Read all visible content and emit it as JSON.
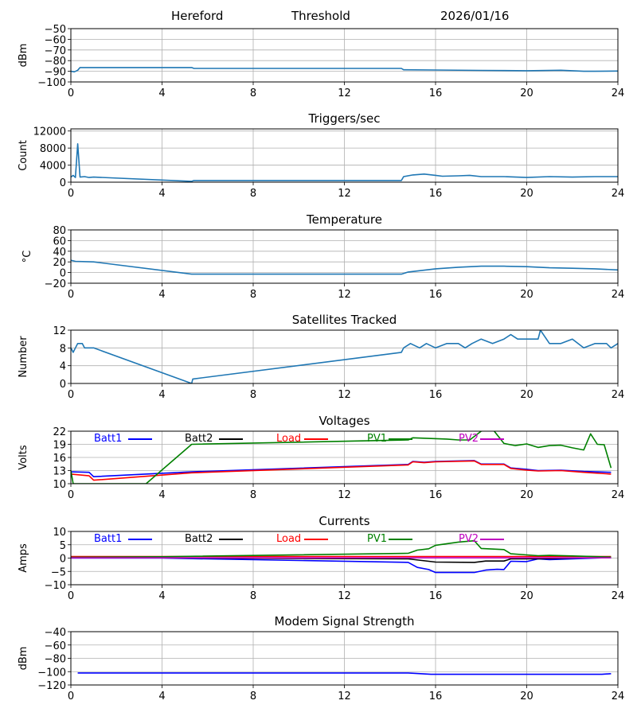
{
  "header": {
    "station": "Hereford",
    "mode": "Threshold",
    "date": "2026/01/16"
  },
  "chart_data": [
    {
      "type": "line",
      "title": "",
      "xlabel": "",
      "ylabel": "dBm",
      "xlim": [
        0,
        24
      ],
      "ylim": [
        -100,
        -50
      ],
      "xticks": [
        0,
        4,
        8,
        12,
        16,
        20,
        24
      ],
      "yticks": [
        -100,
        -90,
        -80,
        -70,
        -60,
        -50
      ],
      "grid": true,
      "series": [
        {
          "name": "threshold",
          "color": "#1f77b4",
          "x": [
            0,
            0.15,
            0.3,
            0.4,
            5.3,
            5.4,
            14.5,
            14.6,
            16,
            18,
            20,
            21.5,
            22.5,
            23,
            24
          ],
          "y": [
            -90,
            -90.5,
            -89,
            -86.5,
            -86.5,
            -87.3,
            -87.3,
            -88.6,
            -88.8,
            -89.2,
            -89.5,
            -89,
            -90,
            -90,
            -89.8
          ]
        }
      ]
    },
    {
      "type": "line",
      "title": "Triggers/sec",
      "xlabel": "",
      "ylabel": "Count",
      "xlim": [
        0,
        24
      ],
      "ylim": [
        0,
        12500
      ],
      "xticks": [
        0,
        4,
        8,
        12,
        16,
        20,
        24
      ],
      "yticks": [
        0,
        4000,
        8000,
        12000
      ],
      "grid": true,
      "series": [
        {
          "name": "triggers",
          "color": "#1f77b4",
          "x": [
            0,
            0.1,
            0.2,
            0.3,
            0.4,
            0.6,
            0.8,
            1.0,
            5.3,
            5.4,
            14.5,
            14.6,
            15,
            15.5,
            16,
            16.3,
            17,
            17.5,
            18,
            19,
            20,
            21,
            22,
            23,
            24
          ],
          "y": [
            1200,
            1600,
            1100,
            9000,
            1200,
            1300,
            1100,
            1200,
            200,
            400,
            400,
            1300,
            1700,
            1900,
            1600,
            1400,
            1500,
            1600,
            1300,
            1300,
            1100,
            1300,
            1200,
            1300,
            1300
          ]
        }
      ]
    },
    {
      "type": "line",
      "title": "Temperature",
      "xlabel": "",
      "ylabel": "°C",
      "xlim": [
        0,
        24
      ],
      "ylim": [
        -20,
        80
      ],
      "xticks": [
        0,
        4,
        8,
        12,
        16,
        20,
        24
      ],
      "yticks": [
        -20,
        0,
        20,
        40,
        60,
        80
      ],
      "grid": true,
      "series": [
        {
          "name": "temperature",
          "color": "#1f77b4",
          "x": [
            0,
            0.2,
            1.0,
            5.3,
            14.5,
            14.8,
            16,
            17,
            18,
            19,
            20,
            21,
            22,
            23,
            24
          ],
          "y": [
            23,
            21,
            20,
            -3,
            -3,
            1,
            7,
            10,
            12,
            12,
            11,
            9,
            8,
            7,
            5
          ]
        }
      ]
    },
    {
      "type": "line",
      "title": "Satellites Tracked",
      "xlabel": "",
      "ylabel": "Number",
      "xlim": [
        0,
        24
      ],
      "ylim": [
        0,
        12
      ],
      "xticks": [
        0,
        4,
        8,
        12,
        16,
        20,
        24
      ],
      "yticks": [
        0,
        4,
        8,
        12
      ],
      "grid": true,
      "series": [
        {
          "name": "satellites",
          "color": "#1f77b4",
          "x": [
            0,
            0.1,
            0.2,
            0.3,
            0.5,
            0.6,
            1.0,
            5.3,
            5.35,
            14.5,
            14.6,
            14.9,
            15.3,
            15.6,
            16,
            16.5,
            17,
            17.3,
            17.6,
            18,
            18.5,
            19,
            19.3,
            19.6,
            20.0,
            20.5,
            20.6,
            21,
            21.5,
            22,
            22.5,
            23,
            23.5,
            23.7,
            24
          ],
          "y": [
            8,
            7,
            8,
            9,
            9,
            8,
            8,
            0,
            1,
            7,
            8,
            9,
            8,
            9,
            8,
            9,
            9,
            8,
            9,
            10,
            9,
            10,
            11,
            10,
            10,
            10,
            12,
            9,
            9,
            10,
            8,
            9,
            9,
            8,
            9
          ]
        }
      ]
    },
    {
      "type": "line",
      "title": "Voltages",
      "xlabel": "",
      "ylabel": "Volts",
      "xlim": [
        0,
        24
      ],
      "ylim": [
        10,
        22
      ],
      "xticks": [
        0,
        4,
        8,
        12,
        16,
        20,
        24
      ],
      "yticks": [
        10,
        13,
        16,
        19,
        22
      ],
      "grid": true,
      "legend": "top",
      "series": [
        {
          "name": "Batt1",
          "color": "#0000ff",
          "x": [
            0,
            0.8,
            1.0,
            5.3,
            14.8,
            15.0,
            15.5,
            16,
            17.7,
            18.0,
            19.0,
            19.3,
            20,
            20.5,
            21.5,
            22.5,
            23.7
          ],
          "y": [
            12.7,
            12.6,
            11.6,
            12.7,
            14.4,
            15.1,
            14.9,
            15.1,
            15.3,
            14.5,
            14.5,
            13.6,
            13.3,
            13.0,
            13.1,
            12.8,
            12.6
          ]
        },
        {
          "name": "Batt2",
          "color": "#000000",
          "x": [],
          "y": []
        },
        {
          "name": "Load",
          "color": "#ff0000",
          "x": [
            0,
            0.8,
            1.0,
            5.3,
            14.8,
            15.0,
            15.5,
            16,
            17.7,
            18.0,
            19.0,
            19.3,
            20,
            20.5,
            21.5,
            22.5,
            23.7
          ],
          "y": [
            12.2,
            11.8,
            10.8,
            12.5,
            14.3,
            15.0,
            14.8,
            15.0,
            15.2,
            14.4,
            14.4,
            13.5,
            13.1,
            12.9,
            13.0,
            12.6,
            12.2
          ]
        },
        {
          "name": "PV1",
          "color": "#008000",
          "x": [
            0,
            0.1,
            3.3,
            5.3,
            14.8,
            15.0,
            16.5,
            17.0,
            17.5,
            18.0,
            18.5,
            19.0,
            19.5,
            20,
            20.5,
            21,
            21.5,
            22,
            22.5,
            22.8,
            23.1,
            23.4,
            23.7
          ],
          "y": [
            13,
            10,
            10,
            19,
            20.0,
            20.5,
            20.2,
            20.0,
            20.0,
            22,
            22.5,
            19.2,
            18.7,
            19.1,
            18.3,
            18.7,
            18.8,
            18.2,
            17.7,
            21.4,
            19.0,
            18.9,
            13.6
          ]
        },
        {
          "name": "PV2",
          "color": "#bf00bf",
          "x": [],
          "y": []
        }
      ]
    },
    {
      "type": "line",
      "title": "Currents",
      "xlabel": "",
      "ylabel": "Amps",
      "xlim": [
        0,
        24
      ],
      "ylim": [
        -10,
        10
      ],
      "xticks": [
        0,
        4,
        8,
        12,
        16,
        20,
        24
      ],
      "yticks": [
        -10,
        -5,
        0,
        5,
        10
      ],
      "grid": true,
      "legend": "top",
      "series": [
        {
          "name": "Batt1",
          "color": "#0000ff",
          "x": [
            0,
            4,
            14.8,
            15.2,
            15.7,
            16,
            17.7,
            18.2,
            18.7,
            19.0,
            19.3,
            20,
            20.5,
            21,
            22,
            23.7
          ],
          "y": [
            0,
            0,
            -1.6,
            -3.5,
            -4.3,
            -5.4,
            -5.4,
            -4.5,
            -4.2,
            -4.3,
            -1.2,
            -1.3,
            -0.3,
            -0.6,
            -0.3,
            0.2
          ]
        },
        {
          "name": "Batt2",
          "color": "#000000",
          "x": [
            0,
            4,
            14.8,
            16,
            17.7,
            18.2,
            19.0,
            19.3,
            20,
            21,
            22,
            23.7
          ],
          "y": [
            0.2,
            0.1,
            -0.3,
            -1.5,
            -1.6,
            -1.1,
            -1.1,
            -0.3,
            -0.3,
            -0.2,
            0,
            0.2
          ]
        },
        {
          "name": "Load",
          "color": "#ff0000",
          "x": [
            0,
            23.7
          ],
          "y": [
            0.6,
            0.6
          ]
        },
        {
          "name": "PV1",
          "color": "#008000",
          "x": [
            0,
            4,
            14.8,
            15.2,
            15.7,
            16,
            17.0,
            17.7,
            18.0,
            19.0,
            19.3,
            20,
            20.5,
            21,
            22,
            23.7
          ],
          "y": [
            0.3,
            0.5,
            1.8,
            3.0,
            3.5,
            4.8,
            6.0,
            6.5,
            3.6,
            3.2,
            1.6,
            1.2,
            0.9,
            1.0,
            0.8,
            0.4
          ]
        },
        {
          "name": "PV2",
          "color": "#bf00bf",
          "x": [
            0,
            23.7
          ],
          "y": [
            0.1,
            0.1
          ]
        }
      ]
    },
    {
      "type": "line",
      "title": "Modem Signal Strength",
      "xlabel": "",
      "ylabel": "dBm",
      "xlim": [
        0,
        24
      ],
      "ylim": [
        -120,
        -40
      ],
      "xticks": [
        0,
        4,
        8,
        12,
        16,
        20,
        24
      ],
      "yticks": [
        -120,
        -100,
        -80,
        -60,
        -40
      ],
      "grid": true,
      "series": [
        {
          "name": "modem",
          "color": "#0000ff",
          "x": [
            0.3,
            14.8,
            15.8,
            23.3,
            23.7
          ],
          "y": [
            -102,
            -102,
            -104,
            -104,
            -103
          ]
        }
      ]
    }
  ]
}
